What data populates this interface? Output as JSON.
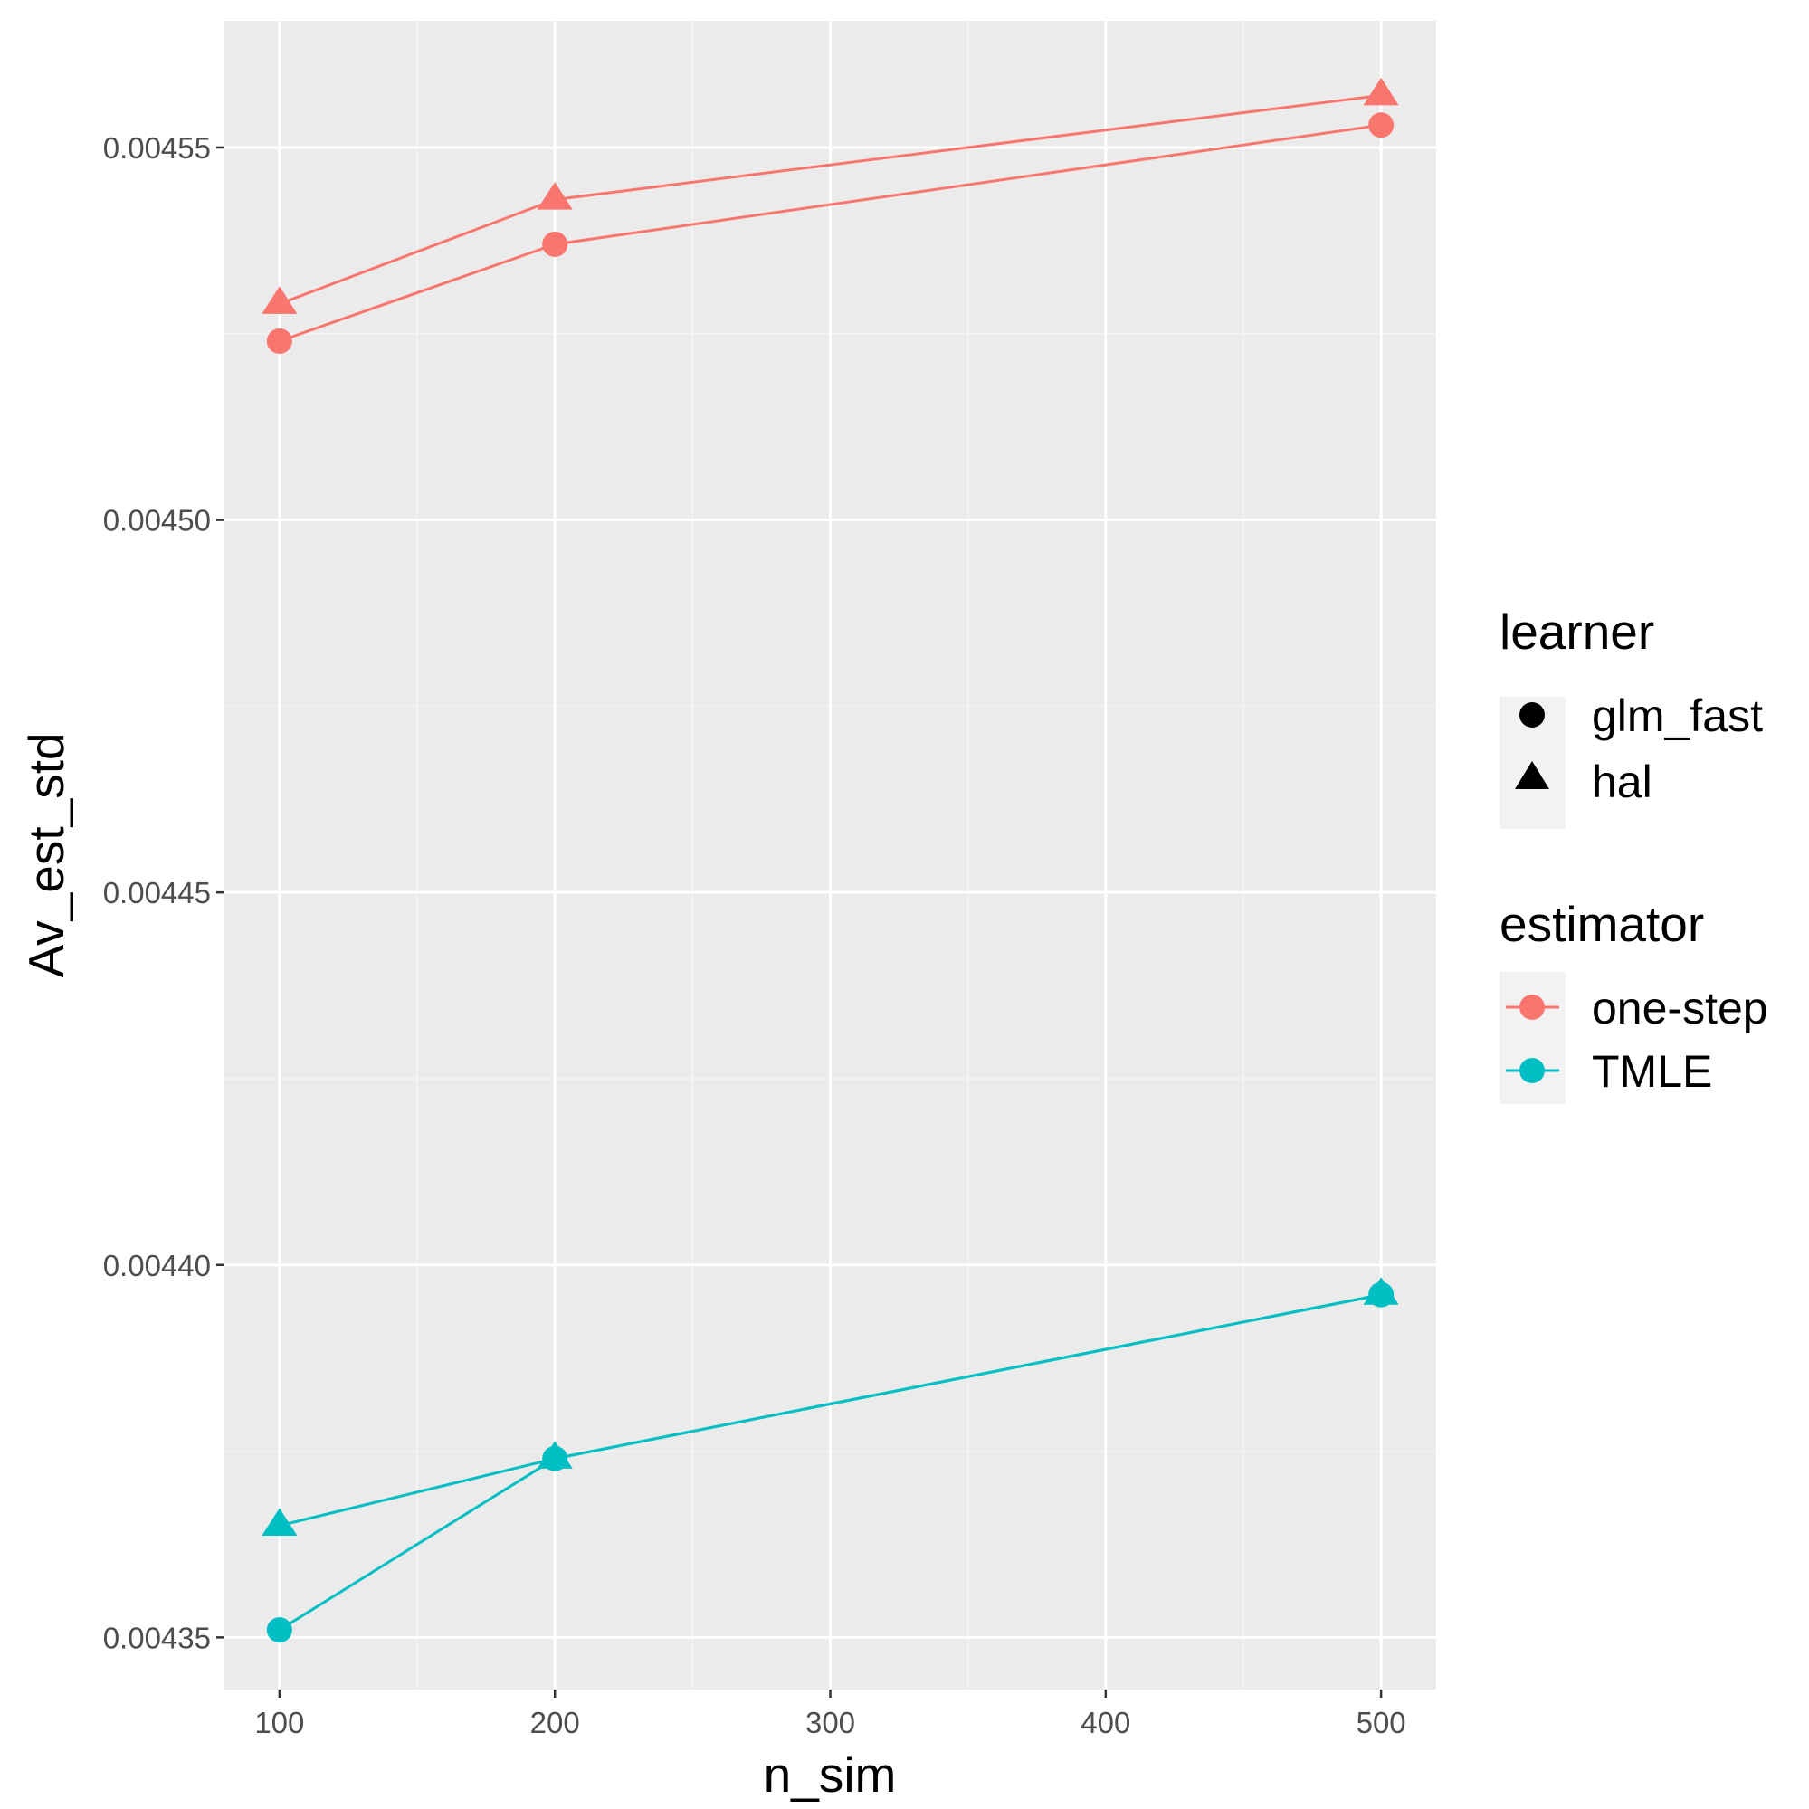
{
  "chart_data": {
    "type": "line",
    "xlabel": "n_sim",
    "ylabel": "Av_est_std",
    "xlim": [
      80,
      520
    ],
    "ylim": [
      0.004343,
      0.004567
    ],
    "x_ticks": [
      100,
      200,
      300,
      400,
      500
    ],
    "x_tick_labels": [
      "100",
      "200",
      "300",
      "400",
      "500"
    ],
    "y_ticks": [
      0.00435,
      0.0044,
      0.00445,
      0.0045,
      0.00455
    ],
    "y_tick_labels": [
      "0.00435",
      "0.00440",
      "0.00445",
      "0.00450",
      "0.00455"
    ],
    "grid": true,
    "legend_position": "right",
    "legends": {
      "learner": {
        "title": "learner",
        "items": [
          {
            "label": "glm_fast",
            "shape": "circle"
          },
          {
            "label": "hal",
            "shape": "triangle"
          }
        ]
      },
      "estimator": {
        "title": "estimator",
        "items": [
          {
            "label": "one-step",
            "color": "#F8766D"
          },
          {
            "label": "TMLE",
            "color": "#00BFC4"
          }
        ]
      }
    },
    "series": [
      {
        "estimator": "one-step",
        "learner": "glm_fast",
        "color": "#F8766D",
        "shape": "circle",
        "x": [
          100,
          200,
          500
        ],
        "y": [
          0.004524,
          0.004537,
          0.004553
        ]
      },
      {
        "estimator": "one-step",
        "learner": "hal",
        "color": "#F8766D",
        "shape": "triangle",
        "x": [
          100,
          200,
          500
        ],
        "y": [
          0.004529,
          0.004543,
          0.004557
        ]
      },
      {
        "estimator": "TMLE",
        "learner": "glm_fast",
        "color": "#00BFC4",
        "shape": "circle",
        "x": [
          100,
          200,
          500
        ],
        "y": [
          0.004351,
          0.004374,
          0.004396
        ]
      },
      {
        "estimator": "TMLE",
        "learner": "hal",
        "color": "#00BFC4",
        "shape": "triangle",
        "x": [
          100,
          200,
          500
        ],
        "y": [
          0.004365,
          0.004374,
          0.004396
        ]
      }
    ]
  },
  "colors": {
    "panel_background": "#EBEBEB",
    "grid_major": "#FFFFFF",
    "grid_minor": "#F4F4F4",
    "legend_key_background": "#F2F2F2"
  }
}
